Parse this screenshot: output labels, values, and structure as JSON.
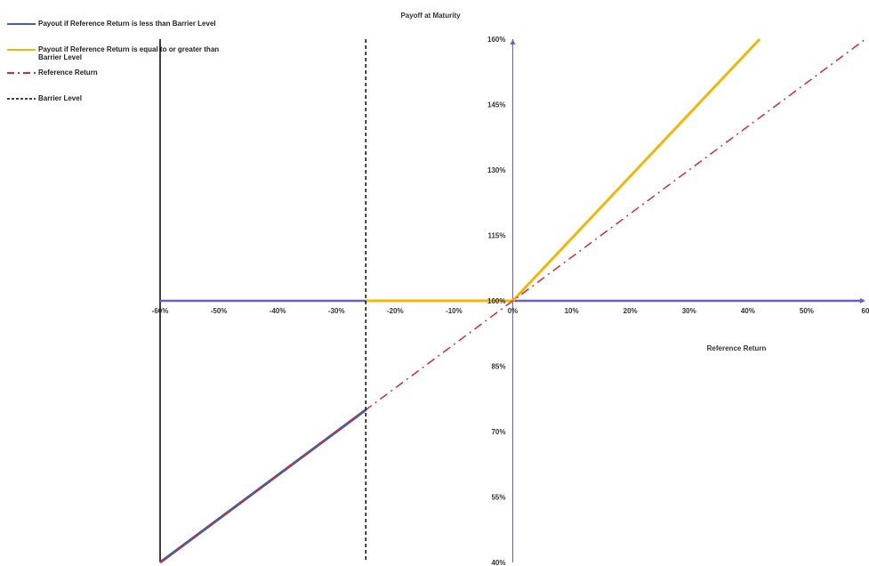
{
  "chart_data": {
    "type": "line",
    "title": "Payoff at Maturity",
    "xlabel": "Reference Return",
    "ylabel": "",
    "xlim": [
      -60,
      60
    ],
    "ylim": [
      40,
      160
    ],
    "x_ticks": [
      "-60%",
      "-50%",
      "-40%",
      "-30%",
      "-20%",
      "-10%",
      "0%",
      "10%",
      "20%",
      "30%",
      "40%",
      "50%",
      "60"
    ],
    "y_ticks": [
      "40%",
      "55%",
      "70%",
      "85%",
      "100%",
      "115%",
      "130%",
      "145%",
      "160%"
    ],
    "series": [
      {
        "name": "Payout if Reference Return is less than Barrier Level",
        "color": "#3f5fa8",
        "style": "solid",
        "points": [
          [
            -60,
            40
          ],
          [
            -25,
            75
          ]
        ]
      },
      {
        "name": "Payout if Reference Return is equal to or greater than Barrier Level",
        "color": "#f2b705",
        "style": "solid",
        "points": [
          [
            -25,
            100
          ],
          [
            0,
            100
          ],
          [
            42,
            160
          ]
        ]
      },
      {
        "name": "Reference Return",
        "color": "#e0262b",
        "style": "dash-dot",
        "points": [
          [
            -60,
            40
          ],
          [
            60,
            160
          ]
        ]
      },
      {
        "name": "Barrier Level",
        "color": "#000000",
        "style": "dashed",
        "x": -25
      }
    ],
    "horizontal_line": {
      "y": 100,
      "color": "#6b5bd6"
    },
    "legend_position": "top-left"
  }
}
